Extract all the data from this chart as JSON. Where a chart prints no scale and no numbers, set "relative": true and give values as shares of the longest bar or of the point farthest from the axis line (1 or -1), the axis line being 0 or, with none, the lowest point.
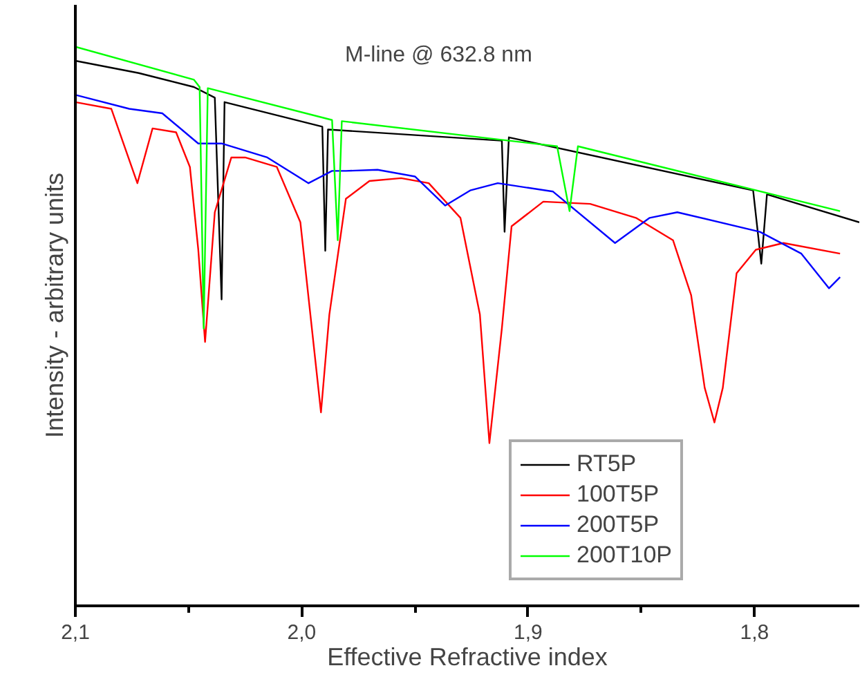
{
  "chart_data": {
    "type": "line",
    "relative": true,
    "xlabel": "Effective Refractive index",
    "ylabel": "Intensity - arbitrary units",
    "annotations": [
      "M-line @ 632.8 nm"
    ],
    "xlim": [
      2.1,
      1.7537
    ],
    "xticks": [
      {
        "value": 2.1,
        "label": "2,1"
      },
      {
        "value": 2.05,
        "label": null
      },
      {
        "value": 2.0,
        "label": "2,0"
      },
      {
        "value": 1.95,
        "label": null
      },
      {
        "value": 1.9,
        "label": "1,9"
      },
      {
        "value": 1.85,
        "label": null
      },
      {
        "value": 1.8,
        "label": "1,8"
      }
    ],
    "grid": false,
    "legend": "bottom right",
    "line_style": "solid",
    "marker": "none",
    "series": [
      {
        "name": "RT5P",
        "color": "#000000",
        "x": [
          2.1,
          2.072,
          2.0476,
          2.0384,
          2.0354,
          2.0341,
          1.9909,
          1.9896,
          1.9884,
          1.9116,
          1.9104,
          1.9085,
          1.8006,
          1.797,
          1.7945,
          1.7537
        ],
        "values": [
          0.975,
          0.953,
          0.928,
          0.909,
          0.548,
          0.901,
          0.857,
          0.635,
          0.852,
          0.832,
          0.669,
          0.838,
          0.743,
          0.612,
          0.736,
          0.686
        ]
      },
      {
        "name": "100T5P",
        "color": "#ff0000",
        "x": [
          2.1,
          2.0841,
          2.0726,
          2.0659,
          2.0555,
          2.0494,
          2.0457,
          2.0427,
          2.0384,
          2.0311,
          2.025,
          2.011,
          2.0006,
          1.9915,
          1.9878,
          1.9805,
          1.9701,
          1.9561,
          1.9439,
          1.9299,
          1.9213,
          1.9171,
          1.9116,
          1.9073,
          1.8933,
          1.8726,
          1.8524,
          1.836,
          1.828,
          1.822,
          1.8177,
          1.814,
          1.8079,
          1.7994,
          1.7872,
          1.7622
        ],
        "values": [
          0.901,
          0.889,
          0.756,
          0.854,
          0.847,
          0.785,
          0.637,
          0.472,
          0.704,
          0.802,
          0.802,
          0.785,
          0.686,
          0.346,
          0.521,
          0.728,
          0.76,
          0.765,
          0.756,
          0.694,
          0.521,
          0.291,
          0.496,
          0.679,
          0.723,
          0.719,
          0.694,
          0.654,
          0.556,
          0.39,
          0.328,
          0.39,
          0.595,
          0.637,
          0.649,
          0.63
        ]
      },
      {
        "name": "200T5P",
        "color": "#0000ff",
        "x": [
          2.1,
          2.0762,
          2.0616,
          2.0457,
          2.0354,
          2.0152,
          1.997,
          1.9866,
          1.9805,
          1.9665,
          1.95,
          1.9366,
          1.9256,
          1.9134,
          1.889,
          1.8616,
          1.8463,
          1.8341,
          1.7976,
          1.7793,
          1.7671,
          1.7622
        ],
        "values": [
          0.914,
          0.889,
          0.881,
          0.827,
          0.827,
          0.802,
          0.756,
          0.778,
          0.778,
          0.78,
          0.768,
          0.716,
          0.743,
          0.756,
          0.741,
          0.649,
          0.694,
          0.704,
          0.669,
          0.63,
          0.568,
          0.588
        ]
      },
      {
        "name": "200T10P",
        "color": "#00ff00",
        "x": [
          2.1,
          2.0476,
          2.0451,
          2.0433,
          2.0415,
          1.9866,
          1.9841,
          1.9823,
          1.8872,
          1.8817,
          1.878,
          1.7622
        ],
        "values": [
          1.0,
          0.941,
          0.928,
          0.496,
          0.926,
          0.869,
          0.654,
          0.867,
          0.822,
          0.706,
          0.822,
          0.706
        ]
      }
    ]
  }
}
